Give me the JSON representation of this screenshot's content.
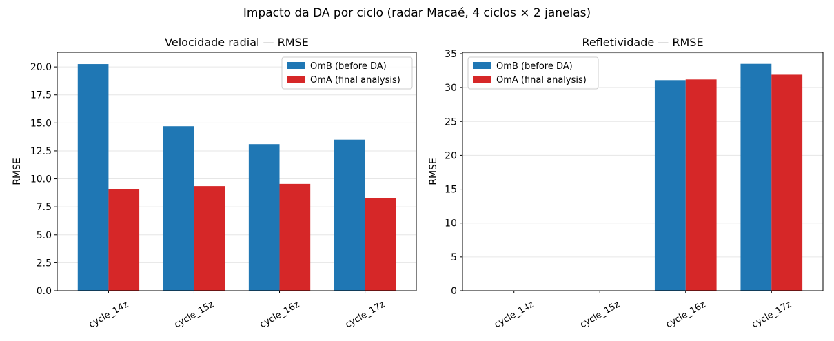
{
  "suptitle": "Impacto da DA por ciclo (radar Macaé, 4 ciclos × 2 janelas)",
  "colors": {
    "omb": "#1f77b4",
    "oma": "#d62728",
    "grid": "#e6e6e6",
    "axis": "#000000"
  },
  "chart_data": [
    {
      "type": "bar",
      "title": "Velocidade radial — RMSE",
      "xlabel": "",
      "ylabel": "RMSE",
      "categories": [
        "cycle_14z",
        "cycle_15z",
        "cycle_16z",
        "cycle_17z"
      ],
      "series": [
        {
          "name": "OmB (before DA)",
          "values": [
            20.25,
            14.7,
            13.1,
            13.5
          ]
        },
        {
          "name": "OmA (final analysis)",
          "values": [
            9.05,
            9.35,
            9.55,
            8.25
          ]
        }
      ],
      "ylim": [
        0,
        21.3
      ],
      "yticks": [
        0.0,
        2.5,
        5.0,
        7.5,
        10.0,
        12.5,
        15.0,
        17.5,
        20.0
      ],
      "ytick_labels": [
        "0.0",
        "2.5",
        "5.0",
        "7.5",
        "10.0",
        "12.5",
        "15.0",
        "17.5",
        "20.0"
      ],
      "grid": "y",
      "legend": "top-right"
    },
    {
      "type": "bar",
      "title": "Refletividade — RMSE",
      "xlabel": "",
      "ylabel": "RMSE",
      "categories": [
        "cycle_14z",
        "cycle_15z",
        "cycle_16z",
        "cycle_17z"
      ],
      "series": [
        {
          "name": "OmB (before DA)",
          "values": [
            0,
            0,
            31.1,
            33.5
          ]
        },
        {
          "name": "OmA (final analysis)",
          "values": [
            0,
            0,
            31.2,
            31.9
          ]
        }
      ],
      "ylim": [
        0,
        35.2
      ],
      "yticks": [
        0,
        5,
        10,
        15,
        20,
        25,
        30,
        35
      ],
      "ytick_labels": [
        "0",
        "5",
        "10",
        "15",
        "20",
        "25",
        "30",
        "35"
      ],
      "grid": "y",
      "legend": "top-left"
    }
  ]
}
